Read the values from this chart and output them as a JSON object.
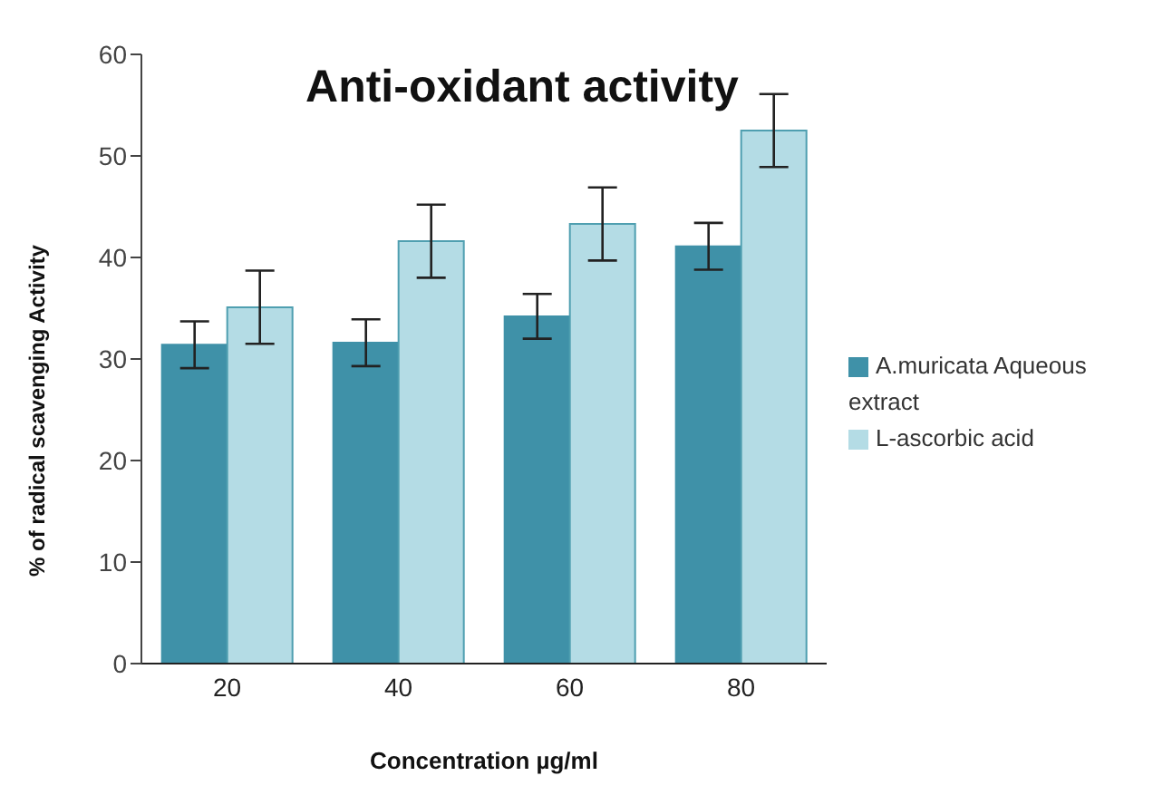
{
  "chart_data": {
    "type": "bar",
    "title": "Anti-oxidant activity",
    "xlabel": "Concentration µg/ml",
    "ylabel": "% of radical scavenging Activity",
    "categories": [
      "20",
      "40",
      "60",
      "80"
    ],
    "series": [
      {
        "name": "A.muricata Aqueous extract",
        "color": "#3f91a8",
        "values": [
          31.4,
          31.6,
          34.2,
          41.1
        ],
        "errors": [
          2.3,
          2.3,
          2.2,
          2.3
        ]
      },
      {
        "name": "L-ascorbic acid",
        "color": "#b4dce5",
        "values": [
          35.1,
          41.6,
          43.3,
          52.5
        ],
        "errors": [
          3.6,
          3.6,
          3.6,
          3.6
        ]
      }
    ],
    "ylim": [
      0,
      60
    ],
    "yticks": [
      0,
      10,
      20,
      30,
      40,
      50,
      60
    ],
    "grid": false,
    "legend": "right"
  }
}
